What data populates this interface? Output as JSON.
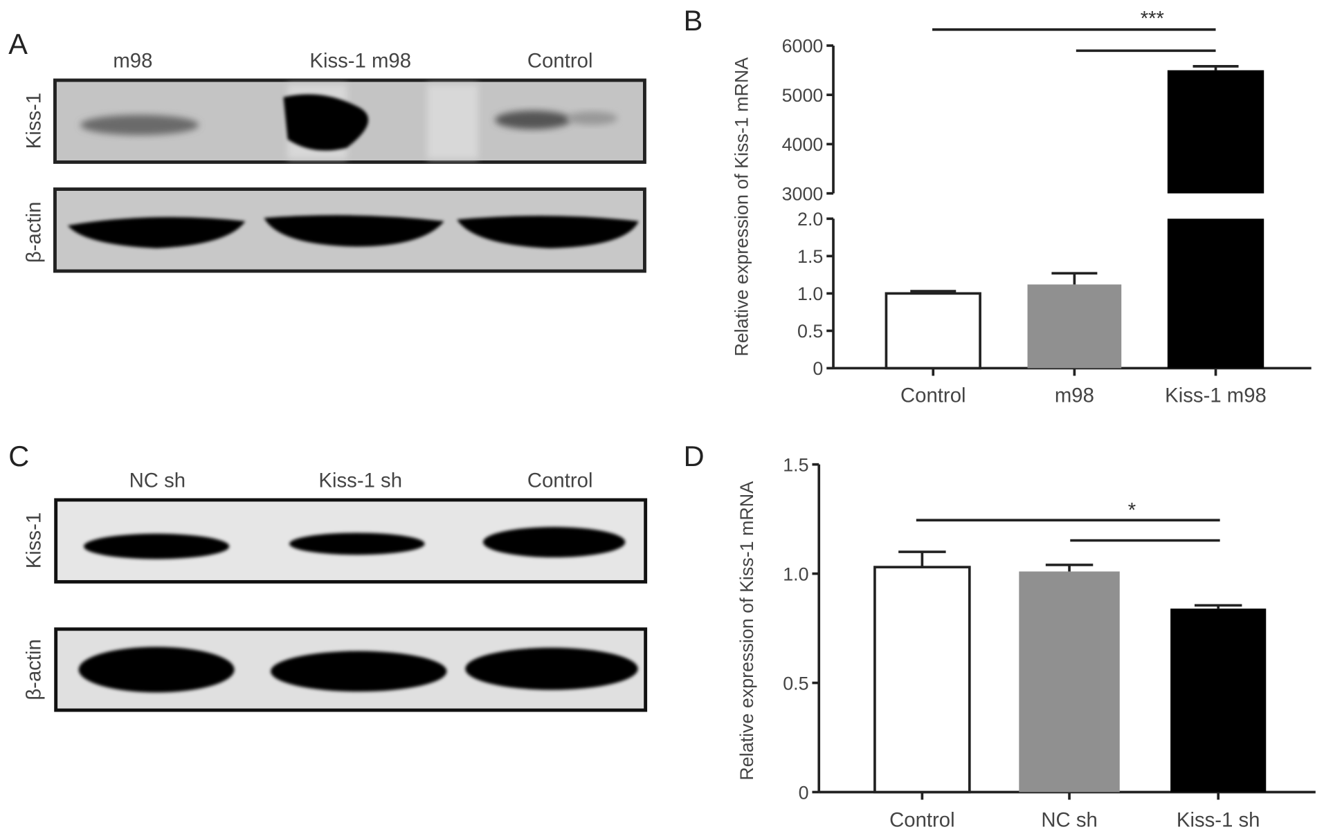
{
  "panels": {
    "A": {
      "label": "A",
      "lanes": [
        "m98",
        "Kiss-1 m98",
        "Control"
      ],
      "rows": [
        "Kiss-1",
        "β-actin"
      ]
    },
    "B": {
      "label": "B"
    },
    "C": {
      "label": "C",
      "lanes": [
        "NC sh",
        "Kiss-1 sh",
        "Control"
      ],
      "rows": [
        "Kiss-1",
        "β-actin"
      ]
    },
    "D": {
      "label": "D"
    }
  },
  "chart_data": [
    {
      "panel": "B",
      "type": "bar",
      "ylabel": "Relative expression of Kiss-1 mRNA",
      "categories": [
        "Control",
        "m98",
        "Kiss-1 m98"
      ],
      "values": [
        1.0,
        1.12,
        5500
      ],
      "errors": [
        0.03,
        0.15,
        80
      ],
      "colors": [
        "#ffffff",
        "#909090",
        "#000000"
      ],
      "y_axis_break": {
        "lower": [
          0,
          2.0
        ],
        "upper": [
          3000,
          6000
        ]
      },
      "yticks_lower": [
        "0",
        "0.5",
        "1.0",
        "1.5",
        "2.0"
      ],
      "yticks_upper": [
        "3000",
        "4000",
        "5000",
        "6000"
      ],
      "significance": {
        "label": "***",
        "comparisons": [
          [
            "Control",
            "Kiss-1 m98"
          ],
          [
            "m98",
            "Kiss-1 m98"
          ]
        ]
      }
    },
    {
      "panel": "D",
      "type": "bar",
      "ylabel": "Relative expression of Kiss-1 mRNA",
      "categories": [
        "Control",
        "NC sh",
        "Kiss-1 sh"
      ],
      "values": [
        1.03,
        1.01,
        0.84
      ],
      "errors": [
        0.07,
        0.03,
        0.015
      ],
      "colors": [
        "#ffffff",
        "#909090",
        "#000000"
      ],
      "ylim": [
        0,
        1.5
      ],
      "yticks": [
        "0",
        "0.5",
        "1.0",
        "1.5"
      ],
      "significance": {
        "label": "*",
        "comparisons": [
          [
            "Control",
            "Kiss-1 sh"
          ],
          [
            "NC sh",
            "Kiss-1 sh"
          ]
        ]
      }
    }
  ]
}
